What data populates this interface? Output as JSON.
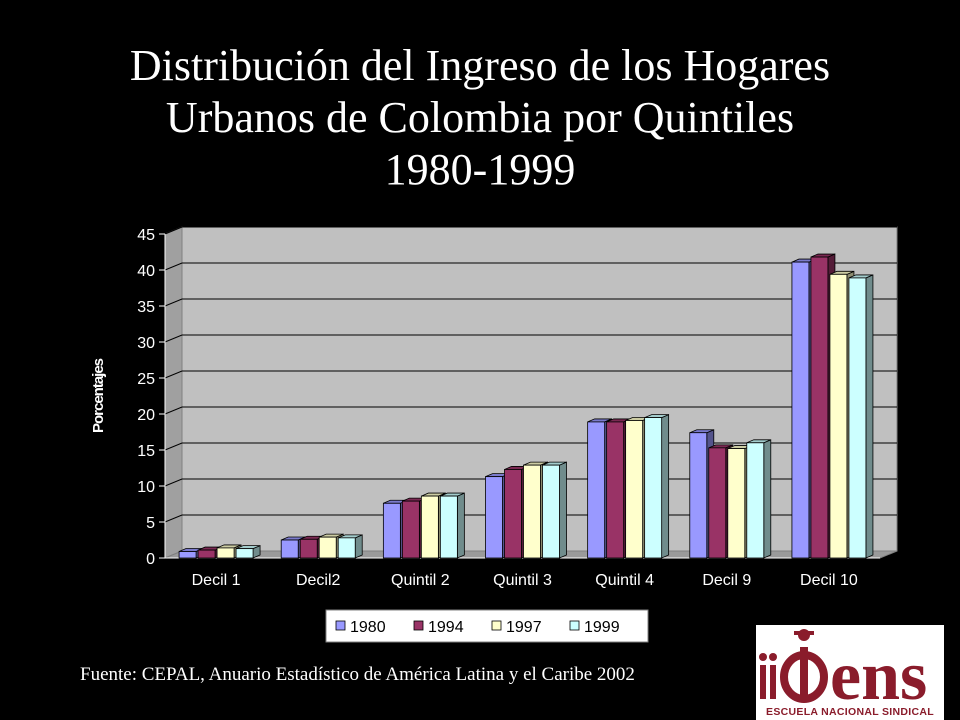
{
  "title": {
    "line1": "Distribución del Ingreso de los Hogares",
    "line2": "Urbanos de Colombia por Quintiles",
    "line3": "1980-1999"
  },
  "source": "Fuente: CEPAL, Anuario Estadístico de América Latina y el Caribe 2002",
  "logo": {
    "mark": "ens",
    "text": "ESCUELA NACIONAL SINDICAL",
    "color": "#8a1c2b"
  },
  "chart_data": {
    "type": "bar",
    "title": "",
    "xlabel": "",
    "ylabel": "Porcentajes",
    "ylim": [
      0,
      45
    ],
    "yticks": [
      0,
      5,
      10,
      15,
      20,
      25,
      30,
      35,
      40,
      45
    ],
    "grid": true,
    "legend_position": "bottom",
    "categories": [
      "Decil 1",
      "Decil2",
      "Quintil 2",
      "Quintil 3",
      "Quintil 4",
      "Decil 9",
      "Decil 10"
    ],
    "series": [
      {
        "name": "1980",
        "color": "#9999ff",
        "values": [
          0.9,
          2.5,
          7.6,
          11.3,
          18.9,
          17.4,
          41.1
        ]
      },
      {
        "name": "1994",
        "color": "#993366",
        "values": [
          1.1,
          2.6,
          7.9,
          12.3,
          18.9,
          15.3,
          41.8
        ]
      },
      {
        "name": "1997",
        "color": "#ffffcc",
        "values": [
          1.4,
          2.9,
          8.6,
          12.9,
          19.1,
          15.2,
          39.4
        ]
      },
      {
        "name": "1999",
        "color": "#ccffff",
        "values": [
          1.3,
          2.8,
          8.6,
          12.9,
          19.5,
          16.0,
          38.9
        ]
      }
    ]
  }
}
